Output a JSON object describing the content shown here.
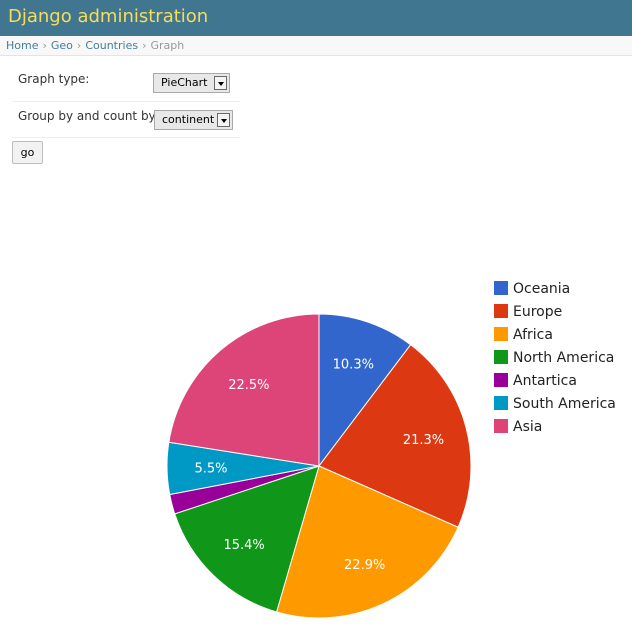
{
  "header": {
    "title": "Django administration"
  },
  "breadcrumbs": {
    "items": [
      "Home",
      "Geo",
      "Countries"
    ],
    "current": "Graph"
  },
  "form": {
    "graph_type_label": "Graph type:",
    "graph_type_value": "PieChart",
    "group_by_label": "Group by and count by:",
    "group_by_value": "continent",
    "go_label": "go"
  },
  "chart_data": {
    "type": "pie",
    "legend_position": "right",
    "slices": [
      {
        "label": "Oceania",
        "value": 10.3,
        "label_text": "10.3%",
        "color": "#3366cc"
      },
      {
        "label": "Europe",
        "value": 21.3,
        "label_text": "21.3%",
        "color": "#dc3912"
      },
      {
        "label": "Africa",
        "value": 22.9,
        "label_text": "22.9%",
        "color": "#ff9900"
      },
      {
        "label": "North America",
        "value": 15.4,
        "label_text": "15.4%",
        "color": "#109618"
      },
      {
        "label": "Antartica",
        "value": 2.1,
        "label_text": "",
        "color": "#990099"
      },
      {
        "label": "South America",
        "value": 5.5,
        "label_text": "5.5%",
        "color": "#0099c6"
      },
      {
        "label": "Asia",
        "value": 22.5,
        "label_text": "22.5%",
        "color": "#dd4477"
      }
    ]
  }
}
